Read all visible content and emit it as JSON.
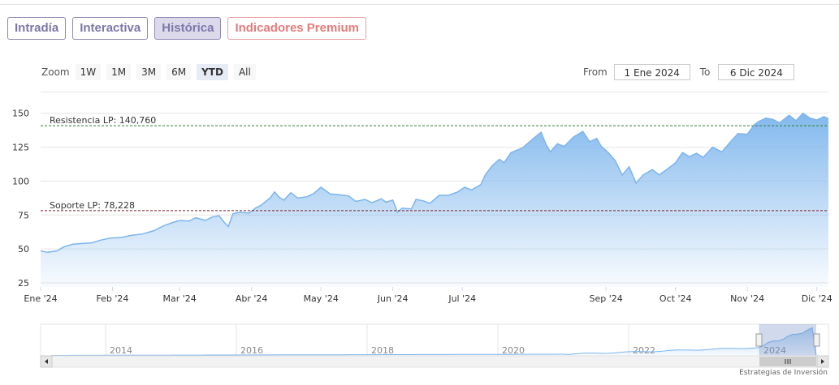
{
  "tabs": [
    {
      "label": "Intradía",
      "state": "normal"
    },
    {
      "label": "Interactiva",
      "state": "normal"
    },
    {
      "label": "Histórica",
      "state": "active"
    },
    {
      "label": "Indicadores Premium",
      "state": "premium"
    }
  ],
  "zoom": {
    "label": "Zoom",
    "buttons": [
      "1W",
      "1M",
      "3M",
      "6M",
      "YTD",
      "All"
    ],
    "selected": "YTD"
  },
  "range": {
    "from_label": "From",
    "from_value": "1 Ene 2024",
    "to_label": "To",
    "to_value": "6 Dic 2024"
  },
  "colors": {
    "series": "#7cb5ec",
    "resistance": "#2e7d32",
    "support": "#7b1f2b",
    "tab": "#7d77a9",
    "premium": "#e57b7b"
  },
  "chart_data": {
    "type": "area",
    "series": [
      {
        "points": [
          [
            "2024-01-01",
            48.5
          ],
          [
            "2024-01-04",
            47.5
          ],
          [
            "2024-01-08",
            48.5
          ],
          [
            "2024-01-11",
            51.5
          ],
          [
            "2024-01-15",
            53.5
          ],
          [
            "2024-01-19",
            54.0
          ],
          [
            "2024-01-23",
            54.5
          ],
          [
            "2024-01-27",
            56.5
          ],
          [
            "2024-01-31",
            58.0
          ],
          [
            "2024-02-05",
            58.5
          ],
          [
            "2024-02-09",
            60.0
          ],
          [
            "2024-02-14",
            61.0
          ],
          [
            "2024-02-19",
            63.5
          ],
          [
            "2024-02-23",
            67.0
          ],
          [
            "2024-02-27",
            69.5
          ],
          [
            "2024-03-01",
            71.0
          ],
          [
            "2024-03-05",
            70.5
          ],
          [
            "2024-03-08",
            73.0
          ],
          [
            "2024-03-12",
            71.0
          ],
          [
            "2024-03-15",
            73.5
          ],
          [
            "2024-03-18",
            74.5
          ],
          [
            "2024-03-20",
            70.0
          ],
          [
            "2024-03-22",
            66.5
          ],
          [
            "2024-03-24",
            76.0
          ],
          [
            "2024-03-27",
            77.0
          ],
          [
            "2024-03-31",
            76.5
          ],
          [
            "2024-04-03",
            80.5
          ],
          [
            "2024-04-05",
            82.0
          ],
          [
            "2024-04-09",
            87.5
          ],
          [
            "2024-04-11",
            92.0
          ],
          [
            "2024-04-13",
            88.0
          ],
          [
            "2024-04-15",
            86.0
          ],
          [
            "2024-04-18",
            91.5
          ],
          [
            "2024-04-21",
            87.5
          ],
          [
            "2024-04-25",
            88.5
          ],
          [
            "2024-04-28",
            91.0
          ],
          [
            "2024-05-01",
            95.5
          ],
          [
            "2024-05-05",
            90.5
          ],
          [
            "2024-05-09",
            90.0
          ],
          [
            "2024-05-13",
            89.0
          ],
          [
            "2024-05-16",
            85.0
          ],
          [
            "2024-05-20",
            86.5
          ],
          [
            "2024-05-23",
            84.0
          ],
          [
            "2024-05-27",
            87.0
          ],
          [
            "2024-05-29",
            84.5
          ],
          [
            "2024-06-01",
            86.0
          ],
          [
            "2024-06-03",
            77.0
          ],
          [
            "2024-06-05",
            80.0
          ],
          [
            "2024-06-09",
            79.5
          ],
          [
            "2024-06-11",
            86.5
          ],
          [
            "2024-06-14",
            85.5
          ],
          [
            "2024-06-17",
            83.5
          ],
          [
            "2024-06-21",
            89.5
          ],
          [
            "2024-06-25",
            89.5
          ],
          [
            "2024-06-29",
            92.0
          ],
          [
            "2024-07-02",
            95.5
          ],
          [
            "2024-07-05",
            93.5
          ],
          [
            "2024-07-09",
            97.5
          ],
          [
            "2024-07-11",
            105.0
          ],
          [
            "2024-07-14",
            111.5
          ],
          [
            "2024-07-17",
            116.0
          ],
          [
            "2024-07-19",
            113.5
          ],
          [
            "2024-07-22",
            121.0
          ],
          [
            "2024-07-27",
            124.5
          ],
          [
            "2024-08-01",
            132.0
          ],
          [
            "2024-08-04",
            136.0
          ],
          [
            "2024-08-06",
            127.5
          ],
          [
            "2024-08-08",
            121.5
          ],
          [
            "2024-08-11",
            127.5
          ],
          [
            "2024-08-14",
            125.5
          ],
          [
            "2024-08-18",
            132.5
          ],
          [
            "2024-08-22",
            136.5
          ],
          [
            "2024-08-25",
            129.0
          ],
          [
            "2024-08-28",
            131.5
          ],
          [
            "2024-08-30",
            125.5
          ],
          [
            "2024-09-02",
            121.0
          ],
          [
            "2024-09-05",
            115.0
          ],
          [
            "2024-09-08",
            104.5
          ],
          [
            "2024-09-11",
            110.5
          ],
          [
            "2024-09-14",
            98.5
          ],
          [
            "2024-09-17",
            104.5
          ],
          [
            "2024-09-21",
            108.5
          ],
          [
            "2024-09-24",
            104.5
          ],
          [
            "2024-09-28",
            109.5
          ],
          [
            "2024-10-01",
            113.5
          ],
          [
            "2024-10-04",
            121.0
          ],
          [
            "2024-10-07",
            118.0
          ],
          [
            "2024-10-10",
            120.5
          ],
          [
            "2024-10-13",
            117.5
          ],
          [
            "2024-10-17",
            125.0
          ],
          [
            "2024-10-21",
            121.5
          ],
          [
            "2024-10-25",
            129.5
          ],
          [
            "2024-10-28",
            135.0
          ],
          [
            "2024-11-01",
            134.5
          ],
          [
            "2024-11-04",
            141.5
          ],
          [
            "2024-11-06",
            144.0
          ],
          [
            "2024-11-09",
            146.5
          ],
          [
            "2024-11-12",
            145.5
          ],
          [
            "2024-11-15",
            143.0
          ],
          [
            "2024-11-19",
            148.5
          ],
          [
            "2024-11-22",
            144.5
          ],
          [
            "2024-11-25",
            150.0
          ],
          [
            "2024-11-28",
            146.5
          ],
          [
            "2024-12-01",
            145.0
          ],
          [
            "2024-12-04",
            147.5
          ],
          [
            "2024-12-06",
            146.0
          ]
        ]
      }
    ],
    "x_ticks": [
      "Ene '24",
      "Feb '24",
      "Mar '24",
      "Abr '24",
      "May '24",
      "Jun '24",
      "Jul '24",
      "Sep '24",
      "Oct '24",
      "Nov '24",
      "Dic '24"
    ],
    "y_ticks": [
      25,
      50,
      75,
      100,
      125,
      150
    ],
    "ylim": [
      22,
      157
    ],
    "grid": true,
    "lines": [
      {
        "label": "Resistencia LP: 140,760",
        "value": 140.76,
        "style": "dashed"
      },
      {
        "label": "Soporte LP: 78,228",
        "value": 78.228,
        "style": "dashed"
      }
    ],
    "navigator": {
      "years": [
        "2014",
        "2016",
        "2018",
        "2020",
        "2022",
        "2024"
      ]
    }
  },
  "credit": "Estrategias de Inversión"
}
